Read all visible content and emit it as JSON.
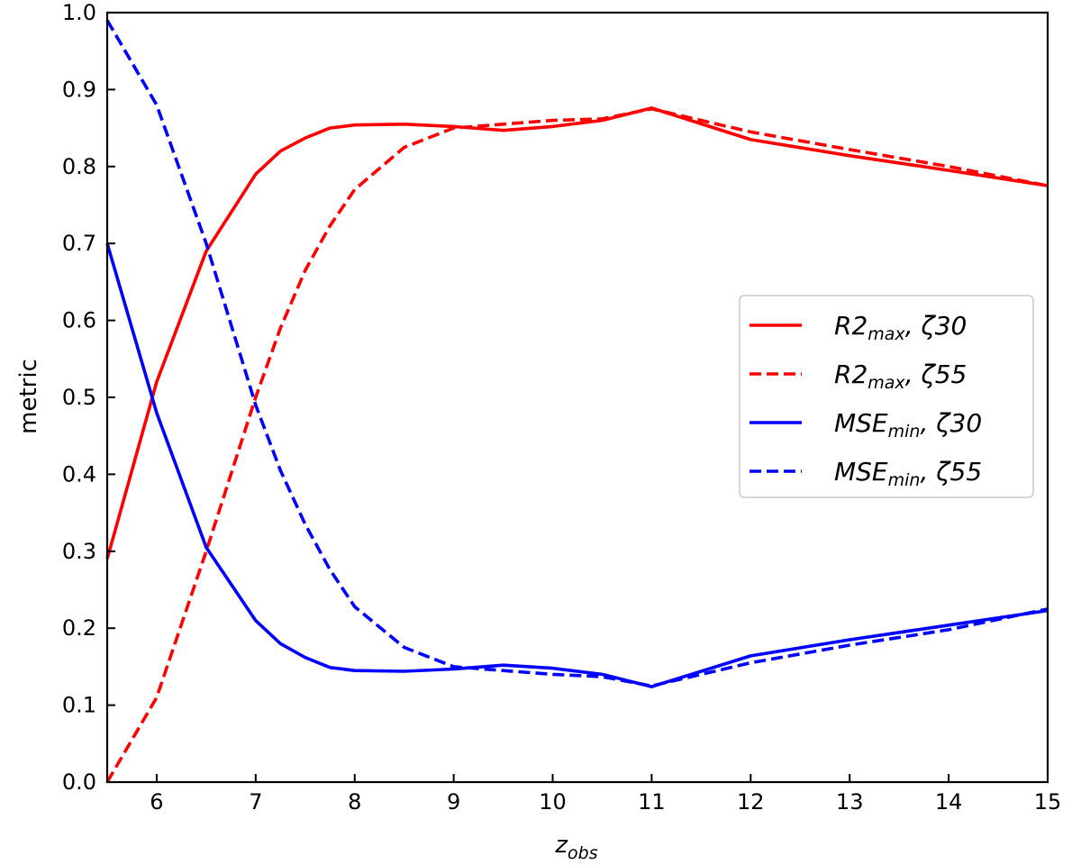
{
  "chart_data": {
    "type": "line",
    "title": "",
    "xlabel_main": "z",
    "xlabel_sub": "obs",
    "ylabel": "metric",
    "xlim": [
      5.5,
      15
    ],
    "ylim": [
      0.0,
      1.0
    ],
    "xticks": [
      "6",
      "7",
      "8",
      "9",
      "10",
      "11",
      "12",
      "13",
      "14",
      "15"
    ],
    "yticks": [
      "0.0",
      "0.1",
      "0.2",
      "0.3",
      "0.4",
      "0.5",
      "0.6",
      "0.7",
      "0.8",
      "0.9",
      "1.0"
    ],
    "grid": false,
    "legend_position": "center-right",
    "colors": {
      "r2": "#ff0000",
      "mse": "#0000ff"
    },
    "series": [
      {
        "name_main": "R2",
        "name_sub": "max",
        "name_suffix": ", ζ30",
        "color": "r2",
        "style": "solid",
        "x": [
          5.5,
          6.0,
          6.5,
          7.0,
          7.25,
          7.5,
          7.75,
          8.0,
          8.5,
          9.0,
          9.5,
          10.0,
          10.5,
          11.0,
          12.0,
          13.0,
          14.0,
          15.0
        ],
        "y": [
          0.29,
          0.52,
          0.69,
          0.79,
          0.82,
          0.837,
          0.85,
          0.854,
          0.855,
          0.852,
          0.847,
          0.852,
          0.86,
          0.876,
          0.835,
          0.814,
          0.795,
          0.775
        ]
      },
      {
        "name_main": "R2",
        "name_sub": "max",
        "name_suffix": ", ζ55",
        "color": "r2",
        "style": "dashed",
        "x": [
          5.5,
          6.0,
          6.5,
          7.0,
          7.25,
          7.5,
          7.75,
          8.0,
          8.5,
          9.0,
          9.5,
          10.0,
          10.5,
          11.0,
          12.0,
          13.0,
          14.0,
          15.0
        ],
        "y": [
          0.0,
          0.11,
          0.3,
          0.5,
          0.59,
          0.665,
          0.723,
          0.77,
          0.825,
          0.85,
          0.855,
          0.86,
          0.862,
          0.875,
          0.845,
          0.822,
          0.8,
          0.775
        ]
      },
      {
        "name_main": "MSE",
        "name_sub": "min",
        "name_suffix": ", ζ30",
        "color": "mse",
        "style": "solid",
        "x": [
          5.5,
          6.0,
          6.5,
          7.0,
          7.25,
          7.5,
          7.75,
          8.0,
          8.5,
          9.0,
          9.5,
          10.0,
          10.5,
          11.0,
          12.0,
          13.0,
          14.0,
          15.0
        ],
        "y": [
          0.7,
          0.48,
          0.305,
          0.21,
          0.18,
          0.162,
          0.149,
          0.145,
          0.144,
          0.147,
          0.152,
          0.148,
          0.14,
          0.124,
          0.164,
          0.185,
          0.204,
          0.223
        ]
      },
      {
        "name_main": "MSE",
        "name_sub": "min",
        "name_suffix": ", ζ55",
        "color": "mse",
        "style": "dashed",
        "x": [
          5.5,
          6.0,
          6.5,
          7.0,
          7.25,
          7.5,
          7.75,
          8.0,
          8.5,
          9.0,
          9.5,
          10.0,
          10.5,
          11.0,
          12.0,
          13.0,
          14.0,
          15.0
        ],
        "y": [
          0.99,
          0.88,
          0.7,
          0.49,
          0.405,
          0.335,
          0.276,
          0.228,
          0.175,
          0.15,
          0.145,
          0.14,
          0.137,
          0.125,
          0.155,
          0.178,
          0.198,
          0.225
        ]
      }
    ]
  }
}
